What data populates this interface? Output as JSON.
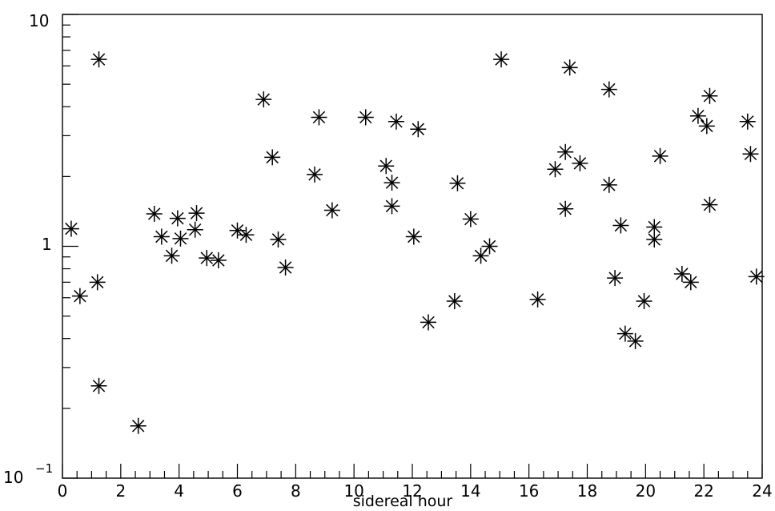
{
  "chart_data": {
    "type": "scatter",
    "title": "",
    "xlabel": "sidereal hour",
    "ylabel": "",
    "xlim": [
      0,
      24
    ],
    "ylim": [
      0.1,
      10
    ],
    "yscale": "log",
    "grid": false,
    "legend": "none",
    "marker": "asterisk",
    "color": "#000000",
    "x_ticks": [
      0,
      2,
      4,
      6,
      8,
      10,
      12,
      14,
      16,
      18,
      20,
      22,
      24
    ],
    "x_tick_labels": [
      "0",
      "2",
      "4",
      "6",
      "8",
      "10",
      "12",
      "14",
      "16",
      "18",
      "20",
      "22",
      "24"
    ],
    "y_tick_labels": {
      "top": {
        "text": "10"
      },
      "mid": {
        "text": "1"
      },
      "bottom": {
        "base": "10",
        "exp": "−1"
      }
    },
    "points": [
      {
        "x": 0.3,
        "y": 1.19
      },
      {
        "x": 0.6,
        "y": 0.61
      },
      {
        "x": 1.2,
        "y": 0.7
      },
      {
        "x": 1.25,
        "y": 6.4
      },
      {
        "x": 1.25,
        "y": 0.25
      },
      {
        "x": 2.6,
        "y": 0.168
      },
      {
        "x": 3.15,
        "y": 1.38
      },
      {
        "x": 3.4,
        "y": 1.1
      },
      {
        "x": 3.75,
        "y": 0.91
      },
      {
        "x": 3.95,
        "y": 1.32
      },
      {
        "x": 4.05,
        "y": 1.08
      },
      {
        "x": 4.55,
        "y": 1.18
      },
      {
        "x": 4.6,
        "y": 1.39
      },
      {
        "x": 4.95,
        "y": 0.89
      },
      {
        "x": 5.35,
        "y": 0.87
      },
      {
        "x": 6.0,
        "y": 1.17
      },
      {
        "x": 6.3,
        "y": 1.12
      },
      {
        "x": 6.9,
        "y": 4.3
      },
      {
        "x": 7.2,
        "y": 2.42
      },
      {
        "x": 7.4,
        "y": 1.07
      },
      {
        "x": 7.65,
        "y": 0.81
      },
      {
        "x": 8.65,
        "y": 2.04
      },
      {
        "x": 8.8,
        "y": 3.6
      },
      {
        "x": 9.25,
        "y": 1.43
      },
      {
        "x": 10.4,
        "y": 3.6
      },
      {
        "x": 11.1,
        "y": 2.22
      },
      {
        "x": 11.3,
        "y": 1.88
      },
      {
        "x": 11.3,
        "y": 1.49
      },
      {
        "x": 11.45,
        "y": 3.45
      },
      {
        "x": 12.05,
        "y": 1.1
      },
      {
        "x": 12.2,
        "y": 3.2
      },
      {
        "x": 12.55,
        "y": 0.47
      },
      {
        "x": 13.45,
        "y": 0.58
      },
      {
        "x": 13.55,
        "y": 1.87
      },
      {
        "x": 14.0,
        "y": 1.31
      },
      {
        "x": 14.35,
        "y": 0.91
      },
      {
        "x": 14.65,
        "y": 1.0
      },
      {
        "x": 15.05,
        "y": 6.4
      },
      {
        "x": 16.3,
        "y": 0.59
      },
      {
        "x": 16.9,
        "y": 2.15
      },
      {
        "x": 17.25,
        "y": 2.55
      },
      {
        "x": 17.25,
        "y": 1.45
      },
      {
        "x": 17.4,
        "y": 5.9
      },
      {
        "x": 17.75,
        "y": 2.28
      },
      {
        "x": 18.75,
        "y": 4.75
      },
      {
        "x": 18.75,
        "y": 1.84
      },
      {
        "x": 18.95,
        "y": 0.73
      },
      {
        "x": 19.15,
        "y": 1.23
      },
      {
        "x": 19.3,
        "y": 0.42
      },
      {
        "x": 19.65,
        "y": 0.39
      },
      {
        "x": 19.95,
        "y": 0.58
      },
      {
        "x": 20.3,
        "y": 1.07
      },
      {
        "x": 20.3,
        "y": 1.21
      },
      {
        "x": 20.5,
        "y": 2.45
      },
      {
        "x": 21.25,
        "y": 0.76
      },
      {
        "x": 21.55,
        "y": 0.7
      },
      {
        "x": 21.8,
        "y": 3.65
      },
      {
        "x": 22.1,
        "y": 3.3
      },
      {
        "x": 22.2,
        "y": 4.45
      },
      {
        "x": 22.2,
        "y": 1.51
      },
      {
        "x": 23.5,
        "y": 3.45
      },
      {
        "x": 23.6,
        "y": 2.5
      },
      {
        "x": 23.8,
        "y": 0.74
      }
    ]
  }
}
